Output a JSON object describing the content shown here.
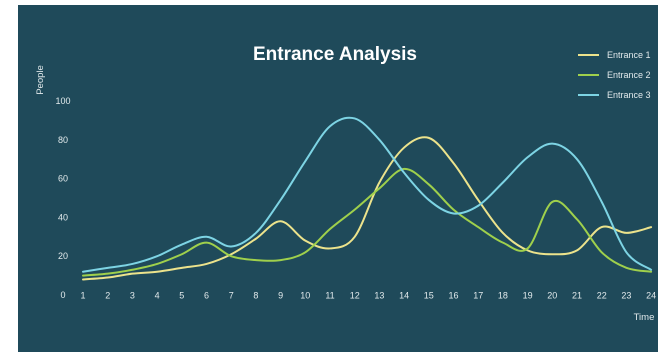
{
  "chart_data": {
    "type": "line",
    "title": "Entrance Analysis",
    "xlabel": "Time",
    "ylabel": "People",
    "x": [
      1,
      2,
      3,
      4,
      5,
      6,
      7,
      8,
      9,
      10,
      11,
      12,
      13,
      14,
      15,
      16,
      17,
      18,
      19,
      20,
      21,
      22,
      23,
      24
    ],
    "yticks": [
      0,
      20,
      40,
      60,
      80,
      100
    ],
    "xlim": [
      0,
      24
    ],
    "ylim": [
      0,
      100
    ],
    "grid": false,
    "legend_position": "top-right",
    "background_color": "#1f4a5a",
    "text_color": "#e2eaec",
    "series": [
      {
        "name": "Entrance 1",
        "color": "#ece38c",
        "values": [
          8,
          9,
          11,
          12,
          14,
          16,
          21,
          29,
          38,
          28,
          24,
          30,
          58,
          76,
          81,
          68,
          49,
          32,
          23,
          21,
          23,
          35,
          32,
          35
        ]
      },
      {
        "name": "Entrance 2",
        "color": "#9fd04c",
        "values": [
          10,
          11,
          13,
          16,
          21,
          27,
          20,
          18,
          18,
          22,
          34,
          44,
          55,
          65,
          57,
          44,
          35,
          27,
          24,
          48,
          39,
          22,
          14,
          12
        ]
      },
      {
        "name": "Entrance 3",
        "color": "#7dd4e4",
        "values": [
          12,
          14,
          16,
          20,
          26,
          30,
          25,
          32,
          49,
          69,
          87,
          91,
          80,
          63,
          49,
          42,
          46,
          58,
          71,
          78,
          70,
          48,
          22,
          13
        ]
      }
    ]
  }
}
